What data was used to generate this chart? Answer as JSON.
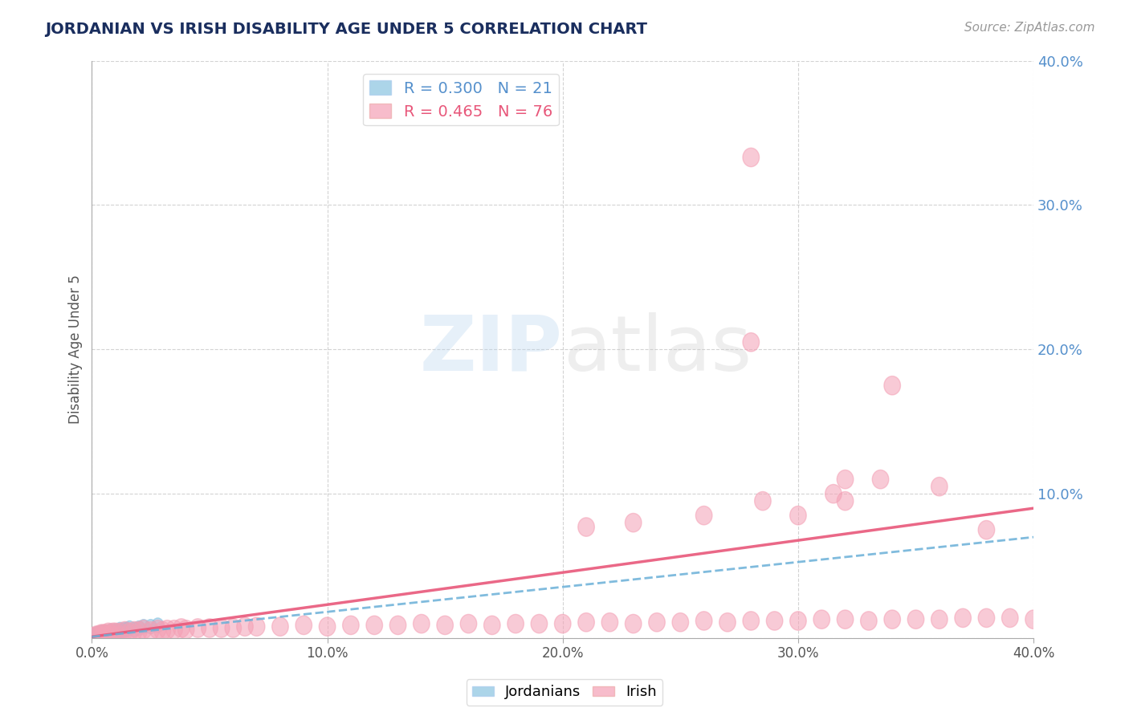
{
  "title": "JORDANIAN VS IRISH DISABILITY AGE UNDER 5 CORRELATION CHART",
  "source": "Source: ZipAtlas.com",
  "ylabel": "Disability Age Under 5",
  "xlim": [
    0.0,
    0.4
  ],
  "ylim": [
    0.0,
    0.4
  ],
  "xticks": [
    0.0,
    0.1,
    0.2,
    0.3,
    0.4
  ],
  "yticks": [
    0.0,
    0.1,
    0.2,
    0.3,
    0.4
  ],
  "ytick_labels": [
    "",
    "10.0%",
    "20.0%",
    "30.0%",
    "40.0%"
  ],
  "xtick_labels": [
    "0.0%",
    "10.0%",
    "20.0%",
    "30.0%",
    "40.0%"
  ],
  "background_color": "#ffffff",
  "grid_color": "#c8c8c8",
  "jordanian_color": "#89c4e1",
  "irish_color": "#f4a0b5",
  "jordanian_R": 0.3,
  "jordanian_N": 21,
  "irish_R": 0.465,
  "irish_N": 76,
  "irish_trend_color": "#e8577a",
  "jordanian_trend_color": "#6ab0d8",
  "jordanian_x": [
    0.001,
    0.002,
    0.003,
    0.004,
    0.005,
    0.006,
    0.007,
    0.008,
    0.009,
    0.01,
    0.011,
    0.012,
    0.013,
    0.014,
    0.015,
    0.016,
    0.018,
    0.02,
    0.022,
    0.025,
    0.028
  ],
  "jordanian_y": [
    0.002,
    0.003,
    0.003,
    0.004,
    0.003,
    0.004,
    0.004,
    0.005,
    0.004,
    0.005,
    0.005,
    0.006,
    0.005,
    0.006,
    0.006,
    0.007,
    0.006,
    0.007,
    0.008,
    0.008,
    0.009
  ],
  "irish_x": [
    0.001,
    0.002,
    0.003,
    0.004,
    0.005,
    0.006,
    0.007,
    0.008,
    0.009,
    0.01,
    0.012,
    0.014,
    0.016,
    0.018,
    0.02,
    0.022,
    0.025,
    0.028,
    0.03,
    0.032,
    0.035,
    0.038,
    0.04,
    0.045,
    0.05,
    0.055,
    0.06,
    0.065,
    0.07,
    0.08,
    0.09,
    0.1,
    0.11,
    0.12,
    0.13,
    0.14,
    0.15,
    0.16,
    0.17,
    0.18,
    0.19,
    0.2,
    0.21,
    0.22,
    0.23,
    0.24,
    0.25,
    0.26,
    0.27,
    0.28,
    0.29,
    0.3,
    0.31,
    0.32,
    0.33,
    0.34,
    0.35,
    0.36,
    0.37,
    0.38,
    0.39,
    0.4,
    0.21,
    0.23,
    0.26,
    0.28,
    0.3,
    0.32,
    0.34,
    0.36,
    0.38,
    0.28,
    0.32,
    0.335,
    0.285,
    0.315
  ],
  "irish_y": [
    0.001,
    0.002,
    0.002,
    0.003,
    0.003,
    0.003,
    0.004,
    0.003,
    0.004,
    0.004,
    0.004,
    0.005,
    0.004,
    0.005,
    0.005,
    0.006,
    0.005,
    0.006,
    0.005,
    0.006,
    0.006,
    0.007,
    0.006,
    0.007,
    0.007,
    0.007,
    0.007,
    0.008,
    0.008,
    0.008,
    0.009,
    0.008,
    0.009,
    0.009,
    0.009,
    0.01,
    0.009,
    0.01,
    0.009,
    0.01,
    0.01,
    0.01,
    0.011,
    0.011,
    0.01,
    0.011,
    0.011,
    0.012,
    0.011,
    0.012,
    0.012,
    0.012,
    0.013,
    0.013,
    0.012,
    0.013,
    0.013,
    0.013,
    0.014,
    0.014,
    0.014,
    0.013,
    0.077,
    0.08,
    0.085,
    0.333,
    0.085,
    0.11,
    0.175,
    0.105,
    0.075,
    0.205,
    0.095,
    0.11,
    0.095,
    0.1
  ]
}
